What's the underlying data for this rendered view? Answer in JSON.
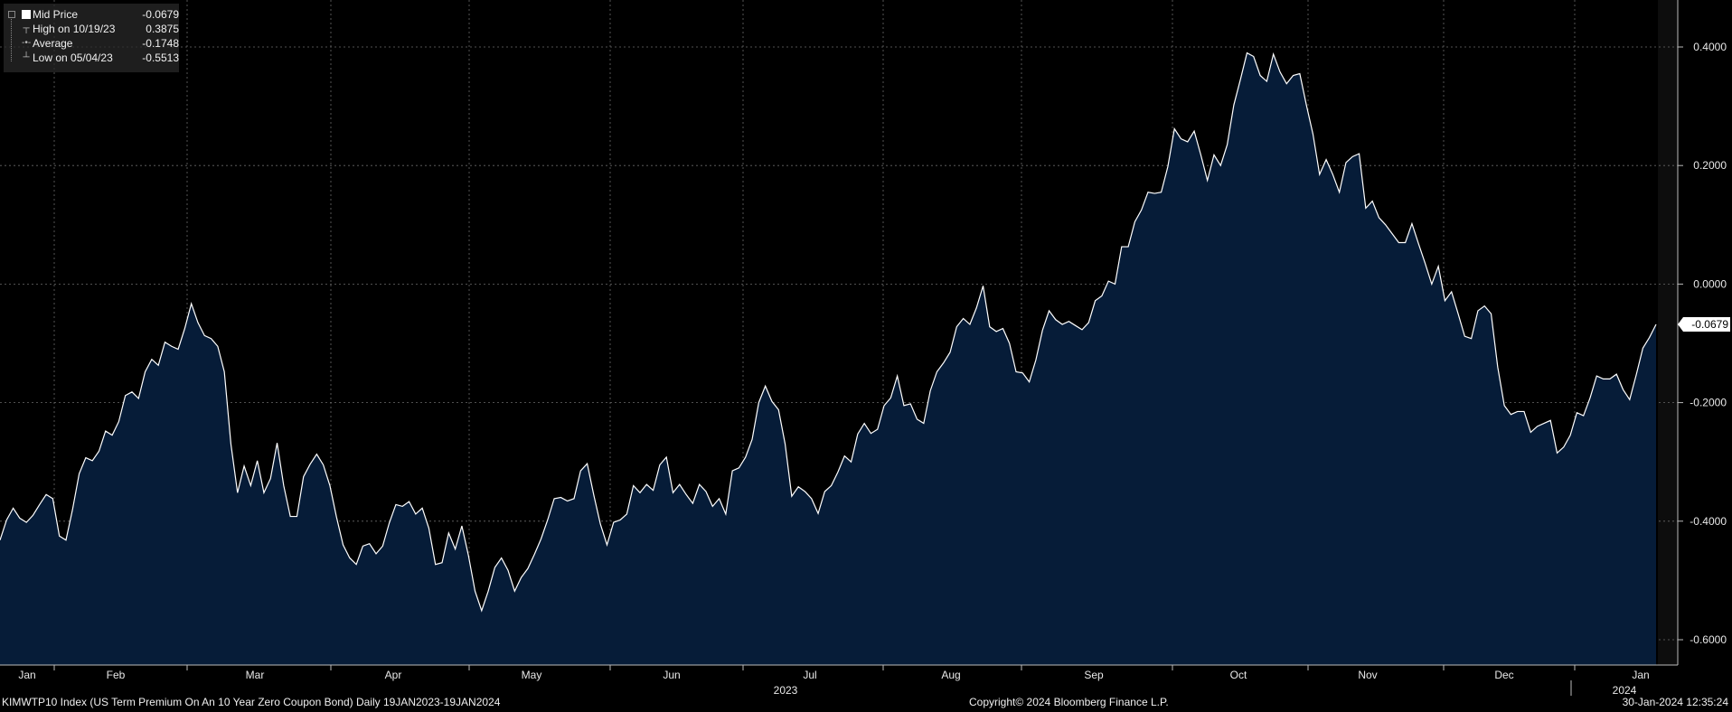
{
  "legend": {
    "items": [
      {
        "label": "Mid Price",
        "value": "-0.0679"
      },
      {
        "label": "High on 10/19/23",
        "value": "0.3875"
      },
      {
        "label": "Average",
        "value": "-0.1748"
      },
      {
        "label": "Low on 05/04/23",
        "value": "-0.5513"
      }
    ]
  },
  "footer": {
    "left": "KIMWTP10 Index (US Term Premium On An 10 Year Zero Coupon Bond)  Daily 19JAN2023-19JAN2024",
    "center": "Copyright© 2024 Bloomberg Finance L.P.",
    "right": "30-Jan-2024 12:35:24"
  },
  "colors": {
    "background": "#000000",
    "area_fill": "#061c38",
    "line": "#ffffff",
    "grid": "#6a6a6a"
  },
  "chart_data": {
    "type": "area",
    "title": "",
    "xlabel": "",
    "ylabel": "",
    "ylim": [
      -0.64,
      0.48
    ],
    "yticks": [
      0.4,
      0.2,
      0.0,
      -0.2,
      -0.4,
      -0.6
    ],
    "ytick_labels": [
      "0.4000",
      "0.2000",
      "0.0000",
      "-0.2000",
      "-0.4000",
      "-0.6000"
    ],
    "months": [
      "Jan",
      "Feb",
      "Mar",
      "Apr",
      "May",
      "Jun",
      "Jul",
      "Aug",
      "Sep",
      "Oct",
      "Nov",
      "Dec",
      "Jan"
    ],
    "year_labels": [
      "2023",
      "2024"
    ],
    "last_value_label": "-0.0679",
    "grid": true,
    "legend_position": "top-left",
    "series": [
      {
        "name": "Mid Price",
        "values": [
          -0.432,
          -0.398,
          -0.378,
          -0.395,
          -0.402,
          -0.39,
          -0.372,
          -0.355,
          -0.362,
          -0.425,
          -0.432,
          -0.38,
          -0.32,
          -0.293,
          -0.298,
          -0.282,
          -0.248,
          -0.255,
          -0.232,
          -0.188,
          -0.182,
          -0.193,
          -0.148,
          -0.127,
          -0.137,
          -0.098,
          -0.105,
          -0.11,
          -0.075,
          -0.033,
          -0.065,
          -0.087,
          -0.092,
          -0.105,
          -0.148,
          -0.27,
          -0.352,
          -0.307,
          -0.34,
          -0.298,
          -0.352,
          -0.328,
          -0.268,
          -0.34,
          -0.392,
          -0.392,
          -0.325,
          -0.304,
          -0.287,
          -0.305,
          -0.34,
          -0.393,
          -0.44,
          -0.462,
          -0.473,
          -0.442,
          -0.438,
          -0.455,
          -0.442,
          -0.403,
          -0.372,
          -0.375,
          -0.367,
          -0.388,
          -0.378,
          -0.412,
          -0.473,
          -0.47,
          -0.42,
          -0.447,
          -0.408,
          -0.458,
          -0.518,
          -0.551,
          -0.518,
          -0.478,
          -0.462,
          -0.483,
          -0.518,
          -0.495,
          -0.48,
          -0.456,
          -0.43,
          -0.398,
          -0.362,
          -0.36,
          -0.366,
          -0.362,
          -0.315,
          -0.303,
          -0.356,
          -0.405,
          -0.44,
          -0.402,
          -0.398,
          -0.388,
          -0.34,
          -0.352,
          -0.338,
          -0.348,
          -0.305,
          -0.292,
          -0.352,
          -0.338,
          -0.355,
          -0.37,
          -0.338,
          -0.35,
          -0.375,
          -0.362,
          -0.388,
          -0.315,
          -0.31,
          -0.292,
          -0.262,
          -0.2,
          -0.172,
          -0.198,
          -0.212,
          -0.27,
          -0.358,
          -0.342,
          -0.35,
          -0.362,
          -0.387,
          -0.35,
          -0.34,
          -0.317,
          -0.29,
          -0.3,
          -0.253,
          -0.235,
          -0.252,
          -0.245,
          -0.205,
          -0.192,
          -0.155,
          -0.205,
          -0.202,
          -0.228,
          -0.235,
          -0.18,
          -0.148,
          -0.133,
          -0.115,
          -0.072,
          -0.058,
          -0.068,
          -0.04,
          -0.003,
          -0.072,
          -0.08,
          -0.075,
          -0.1,
          -0.148,
          -0.15,
          -0.165,
          -0.128,
          -0.078,
          -0.045,
          -0.06,
          -0.068,
          -0.063,
          -0.07,
          -0.077,
          -0.065,
          -0.028,
          -0.02,
          0.005,
          0.0,
          0.063,
          0.063,
          0.105,
          0.125,
          0.155,
          0.153,
          0.155,
          0.198,
          0.262,
          0.245,
          0.24,
          0.258,
          0.218,
          0.175,
          0.218,
          0.2,
          0.235,
          0.302,
          0.345,
          0.39,
          0.384,
          0.352,
          0.342,
          0.388,
          0.358,
          0.338,
          0.352,
          0.355,
          0.302,
          0.253,
          0.185,
          0.21,
          0.185,
          0.155,
          0.205,
          0.215,
          0.22,
          0.128,
          0.14,
          0.112,
          0.1,
          0.085,
          0.07,
          0.07,
          0.102,
          0.068,
          0.035,
          0.0,
          0.03,
          -0.028,
          -0.013,
          -0.05,
          -0.088,
          -0.092,
          -0.045,
          -0.037,
          -0.05,
          -0.14,
          -0.205,
          -0.22,
          -0.215,
          -0.215,
          -0.25,
          -0.24,
          -0.235,
          -0.23,
          -0.285,
          -0.275,
          -0.255,
          -0.217,
          -0.222,
          -0.192,
          -0.155,
          -0.16,
          -0.16,
          -0.152,
          -0.178,
          -0.195,
          -0.153,
          -0.108,
          -0.09,
          -0.068
        ]
      }
    ]
  }
}
